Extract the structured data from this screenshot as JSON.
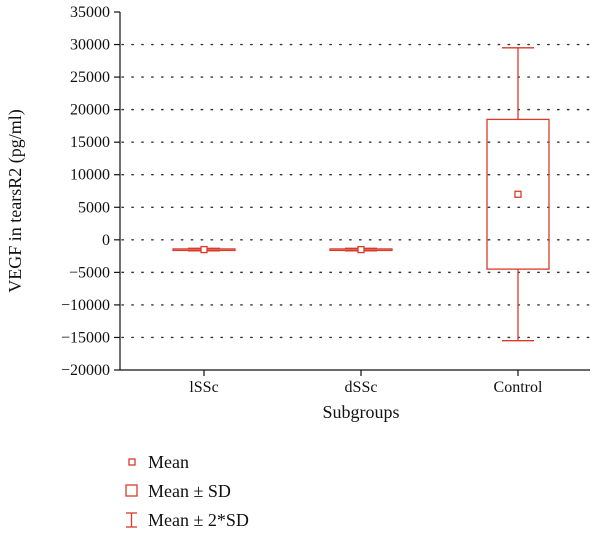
{
  "chart_data": {
    "type": "box",
    "xlabel": "Subgroups",
    "ylabel": "VEGF in tearsR2 (pg/ml)",
    "ylim": [
      -20000,
      35000
    ],
    "yticks": [
      35000,
      30000,
      25000,
      20000,
      15000,
      10000,
      5000,
      0,
      -5000,
      -10000,
      -15000,
      -20000
    ],
    "ytick_labels": [
      "35000",
      "30000",
      "25000",
      "20000",
      "15000",
      "10000",
      "5000",
      "0",
      "−5000",
      "−10000",
      "−15000",
      "−20000"
    ],
    "categories": [
      "lSSc",
      "dSSc",
      "Control"
    ],
    "series": [
      {
        "category": "lSSc",
        "mean": -1500,
        "sd_low": -1600,
        "sd_high": -1400,
        "sd2_low": -1700,
        "sd2_high": -1300
      },
      {
        "category": "dSSc",
        "mean": -1500,
        "sd_low": -1600,
        "sd_high": -1400,
        "sd2_low": -1700,
        "sd2_high": -1300
      },
      {
        "category": "Control",
        "mean": 7000,
        "sd_low": -4500,
        "sd_high": 18500,
        "sd2_low": -15500,
        "sd2_high": 29500
      }
    ],
    "grid": true,
    "grid_style": "dotted horizontal",
    "color": "#d93a2b",
    "legend": [
      {
        "symbol": "mean-marker",
        "label": "Mean"
      },
      {
        "symbol": "sd-box",
        "label": "Mean ± SD"
      },
      {
        "symbol": "sd2-whisker",
        "label": "Mean ± 2*SD"
      }
    ],
    "legend_position": "bottom-left"
  }
}
